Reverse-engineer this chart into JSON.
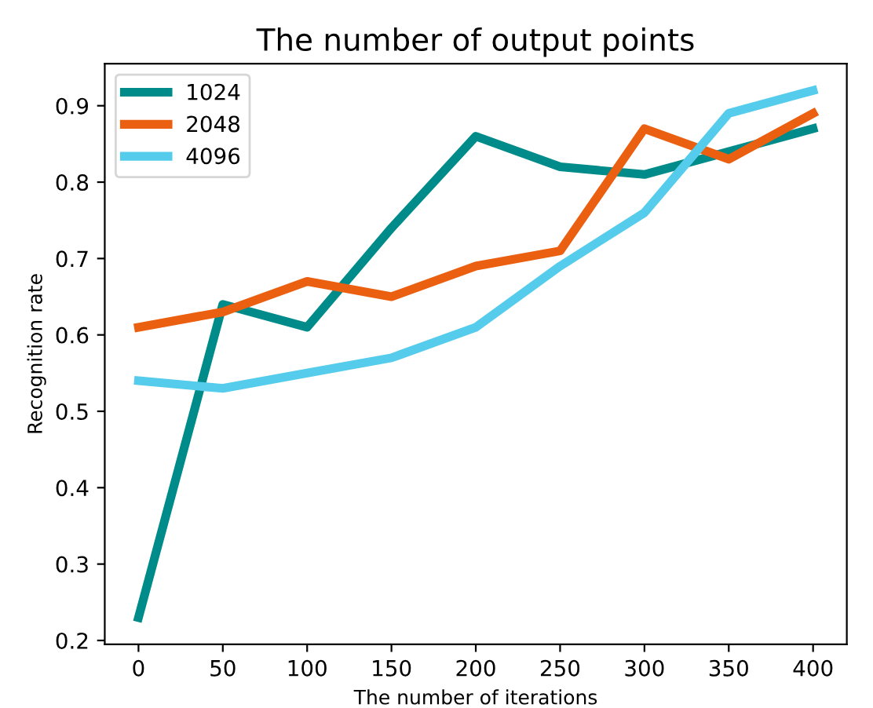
{
  "chart_data": {
    "type": "line",
    "title": "The number of output points",
    "xlabel": "The number of iterations",
    "ylabel": "Recognition rate",
    "x": [
      0,
      50,
      100,
      150,
      200,
      250,
      300,
      350,
      400
    ],
    "series": [
      {
        "name": "1024",
        "color": "#008b8b",
        "values": [
          0.23,
          0.64,
          0.61,
          0.74,
          0.86,
          0.82,
          0.81,
          0.84,
          0.87
        ]
      },
      {
        "name": "2048",
        "color": "#eb6010",
        "values": [
          0.61,
          0.63,
          0.67,
          0.65,
          0.69,
          0.71,
          0.87,
          0.83,
          0.89
        ]
      },
      {
        "name": "4096",
        "color": "#55cceb",
        "values": [
          0.54,
          0.53,
          0.55,
          0.57,
          0.61,
          0.69,
          0.76,
          0.89,
          0.92
        ]
      }
    ],
    "xlim": [
      -20,
      420
    ],
    "xticks": [
      0,
      50,
      100,
      150,
      200,
      250,
      300,
      350,
      400
    ],
    "ylim": [
      0.195,
      0.955
    ],
    "yticks": [
      0.2,
      0.3,
      0.4,
      0.5,
      0.6,
      0.7,
      0.8,
      0.9
    ],
    "grid": false,
    "legend": "top left",
    "marker": "none",
    "line_style": "solid"
  }
}
